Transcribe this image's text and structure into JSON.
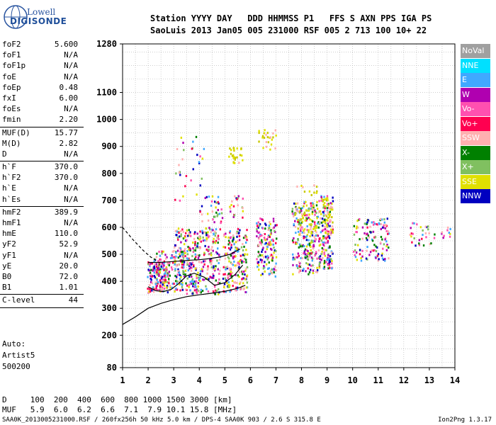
{
  "logo": {
    "line1": "Lowell",
    "line2": "DIGISONDE"
  },
  "header": {
    "line1": "Station YYYY DAY   DDD HHMMSS P1   FFS S AXN PPS IGA PS",
    "line2": "SaoLuis 2013 Jan05 005 231000 RSF 005 2 713 100 10+ 22"
  },
  "params": {
    "group1": [
      {
        "k": "foF2",
        "v": "5.600"
      },
      {
        "k": "foF1",
        "v": "N/A"
      },
      {
        "k": "foF1p",
        "v": "N/A"
      },
      {
        "k": "foE",
        "v": "N/A"
      },
      {
        "k": "foEp",
        "v": "0.48"
      },
      {
        "k": "fxI",
        "v": "6.00"
      },
      {
        "k": "foEs",
        "v": "N/A"
      },
      {
        "k": "fmin",
        "v": "2.20"
      }
    ],
    "group2": [
      {
        "k": "MUF(D)",
        "v": "15.77"
      },
      {
        "k": "M(D)",
        "v": "2.82"
      },
      {
        "k": "D",
        "v": "N/A"
      }
    ],
    "group3": [
      {
        "k": "h`F",
        "v": "370.0"
      },
      {
        "k": "h`F2",
        "v": "370.0"
      },
      {
        "k": "h`E",
        "v": "N/A"
      },
      {
        "k": "h`Es",
        "v": "N/A"
      }
    ],
    "group4": [
      {
        "k": "hmF2",
        "v": "389.9"
      },
      {
        "k": "hmF1",
        "v": "N/A"
      },
      {
        "k": "hmE",
        "v": "110.0"
      },
      {
        "k": "yF2",
        "v": "52.9"
      },
      {
        "k": "yF1",
        "v": "N/A"
      },
      {
        "k": "yE",
        "v": "20.0"
      },
      {
        "k": "B0",
        "v": "72.0"
      },
      {
        "k": "B1",
        "v": "1.01"
      }
    ],
    "group5": [
      {
        "k": "C-level",
        "v": "44"
      }
    ]
  },
  "misc": {
    "auto": "Auto:",
    "artist": "Artist5",
    "code": "500200"
  },
  "muf_table": {
    "line1": "D     100  200  400  600  800 1000 1500 3000 [km]",
    "line2": "MUF   5.9  6.0  6.2  6.6  7.1  7.9 10.1 15.8 [MHz]"
  },
  "footer": {
    "left": "SAA0K_2013005231000.RSF / 260fx256h 50 kHz 5.0 km / DPS-4 SAA0K 903 / 2.6 S 315.8 E",
    "right": "Ion2Png 1.3.17"
  },
  "legend": [
    {
      "label": "NoVal",
      "color": "#a0a0a0"
    },
    {
      "label": "NNE",
      "color": "#00e0ff"
    },
    {
      "label": "E",
      "color": "#40a8ff"
    },
    {
      "label": "W",
      "color": "#b000b0"
    },
    {
      "label": "Vo-",
      "color": "#ff50b0"
    },
    {
      "label": "Vo+",
      "color": "#ff0050"
    },
    {
      "label": "SSW",
      "color": "#ffb0b0"
    },
    {
      "label": "X-",
      "color": "#008000"
    },
    {
      "label": "X+",
      "color": "#80c060"
    },
    {
      "label": "SSE",
      "color": "#e0e000"
    },
    {
      "label": "NNW",
      "color": "#0000c0"
    }
  ],
  "chart_data": {
    "type": "scatter",
    "title": "",
    "xlabel": "",
    "ylabel": "",
    "x_ticks": [
      "1",
      "2",
      "3",
      "4",
      "5",
      "6",
      "7",
      "8",
      "9",
      "10",
      "11",
      "12",
      "13",
      "14"
    ],
    "y_ticks": [
      "80",
      "200",
      "300",
      "400",
      "500",
      "600",
      "700",
      "800",
      "900",
      "1000",
      "1100",
      "1280"
    ],
    "xlim": [
      1,
      14
    ],
    "ylim": [
      80,
      1280
    ],
    "grid": true,
    "legend_position": "right",
    "echo_clusters": [
      {
        "x_range": [
          1.95,
          2.8
        ],
        "y_range": [
          360,
          480
        ],
        "density": 130
      },
      {
        "x_range": [
          2.2,
          3.4
        ],
        "y_range": [
          370,
          520
        ],
        "density": 120
      },
      {
        "x_range": [
          3.0,
          4.8
        ],
        "y_range": [
          355,
          600
        ],
        "density": 340
      },
      {
        "x_range": [
          4.0,
          4.9
        ],
        "y_range": [
          600,
          720
        ],
        "density": 35
      },
      {
        "x_range": [
          4.9,
          5.85
        ],
        "y_range": [
          360,
          600
        ],
        "density": 190
      },
      {
        "x_range": [
          5.1,
          5.7
        ],
        "y_range": [
          640,
          720
        ],
        "density": 20
      },
      {
        "x_range": [
          6.2,
          7.0
        ],
        "y_range": [
          420,
          640
        ],
        "density": 160
      },
      {
        "x_range": [
          7.6,
          8.6
        ],
        "y_range": [
          430,
          700
        ],
        "density": 220
      },
      {
        "x_range": [
          8.6,
          9.2
        ],
        "y_range": [
          450,
          720
        ],
        "density": 160
      },
      {
        "x_range": [
          10.0,
          11.4
        ],
        "y_range": [
          480,
          640
        ],
        "density": 120
      },
      {
        "x_range": [
          12.2,
          13.2
        ],
        "y_range": [
          530,
          620
        ],
        "density": 30
      },
      {
        "x_range": [
          13.4,
          13.8
        ],
        "y_range": [
          560,
          610
        ],
        "density": 10
      },
      {
        "x_range": [
          3.0,
          4.2
        ],
        "y_range": [
          680,
          940
        ],
        "density": 30
      }
    ],
    "sse_clusters": [
      {
        "x_range": [
          5.1,
          5.7
        ],
        "y_range": [
          840,
          900
        ],
        "density": 25
      },
      {
        "x_range": [
          6.3,
          7.0
        ],
        "y_range": [
          890,
          970
        ],
        "density": 25
      },
      {
        "x_range": [
          7.7,
          8.6
        ],
        "y_range": [
          560,
          760
        ],
        "density": 60
      },
      {
        "x_range": [
          8.8,
          9.2
        ],
        "y_range": [
          560,
          720
        ],
        "density": 40
      }
    ],
    "lines": [
      {
        "name": "",
        "style": "solid",
        "x": [
          1.0,
          1.5,
          2.0,
          2.5,
          3.0,
          3.5,
          4.0,
          4.5,
          5.0,
          5.5,
          5.8
        ],
        "y": [
          240,
          268,
          300,
          318,
          332,
          343,
          350,
          356,
          363,
          374,
          385
        ]
      },
      {
        "name": "",
        "style": "dashed",
        "x": [
          1.0,
          1.4,
          1.8,
          2.1,
          2.3
        ],
        "y": [
          600,
          555,
          515,
          490,
          478
        ]
      },
      {
        "name": "",
        "style": "solid",
        "x": [
          2.0,
          2.4,
          2.8,
          3.2,
          3.6,
          4.0,
          4.4,
          4.8,
          5.2,
          5.6
        ],
        "y": [
          470,
          470,
          472,
          475,
          478,
          480,
          484,
          490,
          500,
          520
        ]
      },
      {
        "name": "",
        "style": "solid",
        "x": [
          2.0,
          2.3,
          2.6,
          2.9,
          3.2,
          3.5,
          3.8,
          4.2,
          4.6,
          5.0,
          5.4,
          5.7
        ],
        "y": [
          380,
          365,
          362,
          370,
          392,
          420,
          430,
          415,
          385,
          395,
          425,
          460
        ]
      }
    ]
  }
}
